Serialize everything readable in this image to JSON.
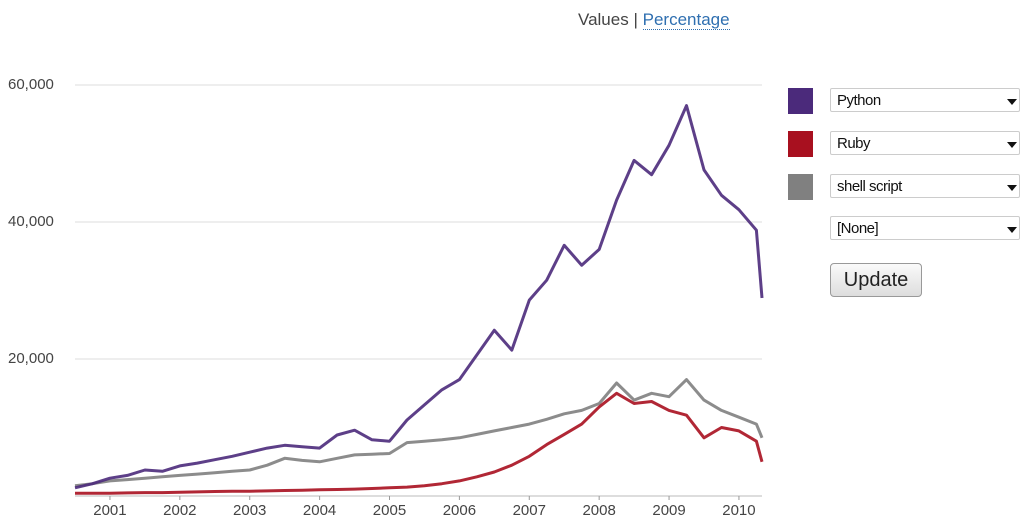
{
  "ui": {
    "values_label": "Values",
    "separator": "|",
    "percentage_link": "Percentage",
    "empty_option": "[None]",
    "update_button": "Update"
  },
  "chart_data": {
    "type": "line",
    "x": [
      2000.5,
      2000.75,
      2001,
      2001.25,
      2001.5,
      2001.75,
      2002,
      2002.25,
      2002.5,
      2002.75,
      2003,
      2003.25,
      2003.5,
      2003.75,
      2004,
      2004.25,
      2004.5,
      2004.75,
      2005,
      2005.25,
      2005.5,
      2005.75,
      2006,
      2006.25,
      2006.5,
      2006.75,
      2007,
      2007.25,
      2007.5,
      2007.75,
      2008,
      2008.25,
      2008.5,
      2008.75,
      2009,
      2009.25,
      2009.5,
      2009.75,
      2010,
      2010.25,
      2010.33
    ],
    "series": [
      {
        "name": "Python",
        "color": "#4b2a7b",
        "values": [
          1200,
          1800,
          2600,
          3000,
          3800,
          3600,
          4400,
          4800,
          5300,
          5800,
          6400,
          7000,
          7400,
          7200,
          7000,
          8900,
          9600,
          8200,
          8000,
          11100,
          13300,
          15500,
          17000,
          20600,
          24200,
          21300,
          28600,
          31500,
          36600,
          33700,
          36000,
          43200,
          49000,
          46900,
          51200,
          57000,
          47600,
          43900,
          41800,
          38800,
          28900
        ]
      },
      {
        "name": "Ruby",
        "color": "#a8101f",
        "values": [
          400,
          400,
          400,
          450,
          500,
          500,
          550,
          600,
          650,
          700,
          700,
          750,
          800,
          850,
          900,
          950,
          1000,
          1100,
          1200,
          1300,
          1500,
          1800,
          2200,
          2800,
          3500,
          4500,
          5800,
          7500,
          9000,
          10500,
          13000,
          15000,
          13500,
          13800,
          12500,
          11800,
          8500,
          10000,
          9500,
          8000,
          5000
        ]
      },
      {
        "name": "shell script",
        "color": "#808080",
        "values": [
          1500,
          1800,
          2200,
          2400,
          2600,
          2800,
          3000,
          3200,
          3400,
          3600,
          3800,
          4500,
          5500,
          5200,
          5000,
          5500,
          6000,
          6100,
          6200,
          7800,
          8000,
          8200,
          8500,
          9000,
          9500,
          10000,
          10500,
          11200,
          12000,
          12500,
          13500,
          16500,
          14000,
          15000,
          14500,
          17000,
          14000,
          12500,
          11500,
          10500,
          8500
        ]
      }
    ],
    "xlim": [
      2000.5,
      2010.33
    ],
    "xticks": [
      2001,
      2002,
      2003,
      2004,
      2005,
      2006,
      2007,
      2008,
      2009,
      2010
    ],
    "ylim": [
      0,
      60000
    ],
    "yticks": [
      {
        "value": 20000,
        "label": "20,000"
      },
      {
        "value": 40000,
        "label": "40,000"
      },
      {
        "value": 60000,
        "label": "60,000"
      }
    ],
    "grid": true
  }
}
